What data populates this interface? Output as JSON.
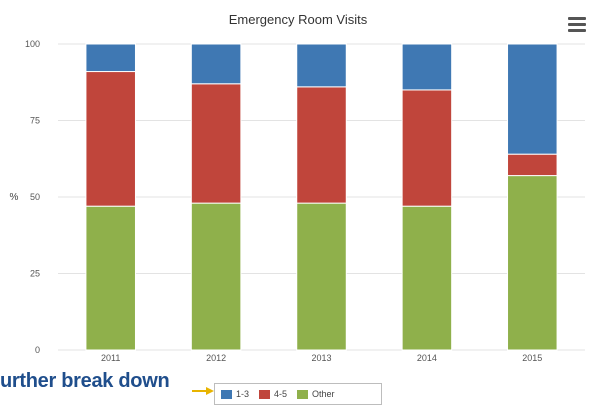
{
  "chart_data": {
    "type": "bar",
    "stacked": true,
    "title": "Emergency Room Visits",
    "ylabel": "%",
    "xlabel": "",
    "ylim": [
      0,
      100
    ],
    "yticks": [
      "0",
      "25",
      "50",
      "75",
      "100"
    ],
    "categories": [
      "2011",
      "2012",
      "2013",
      "2014",
      "2015"
    ],
    "series": [
      {
        "name": "Other",
        "color": "#8fb04b",
        "values": [
          47,
          48,
          48,
          47,
          57
        ]
      },
      {
        "name": "4-5",
        "color": "#c0453b",
        "values": [
          44,
          39,
          38,
          38,
          7
        ]
      },
      {
        "name": "1-3",
        "color": "#3f78b3",
        "values": [
          9,
          13,
          14,
          15,
          36
        ]
      }
    ],
    "grid": true,
    "legend_position": "bottom"
  },
  "annotation": "urther break down",
  "legend": [
    {
      "label": "1-3",
      "color": "#3f78b3"
    },
    {
      "label": "4-5",
      "color": "#c0453b"
    },
    {
      "label": "Other",
      "color": "#8fb04b"
    }
  ]
}
